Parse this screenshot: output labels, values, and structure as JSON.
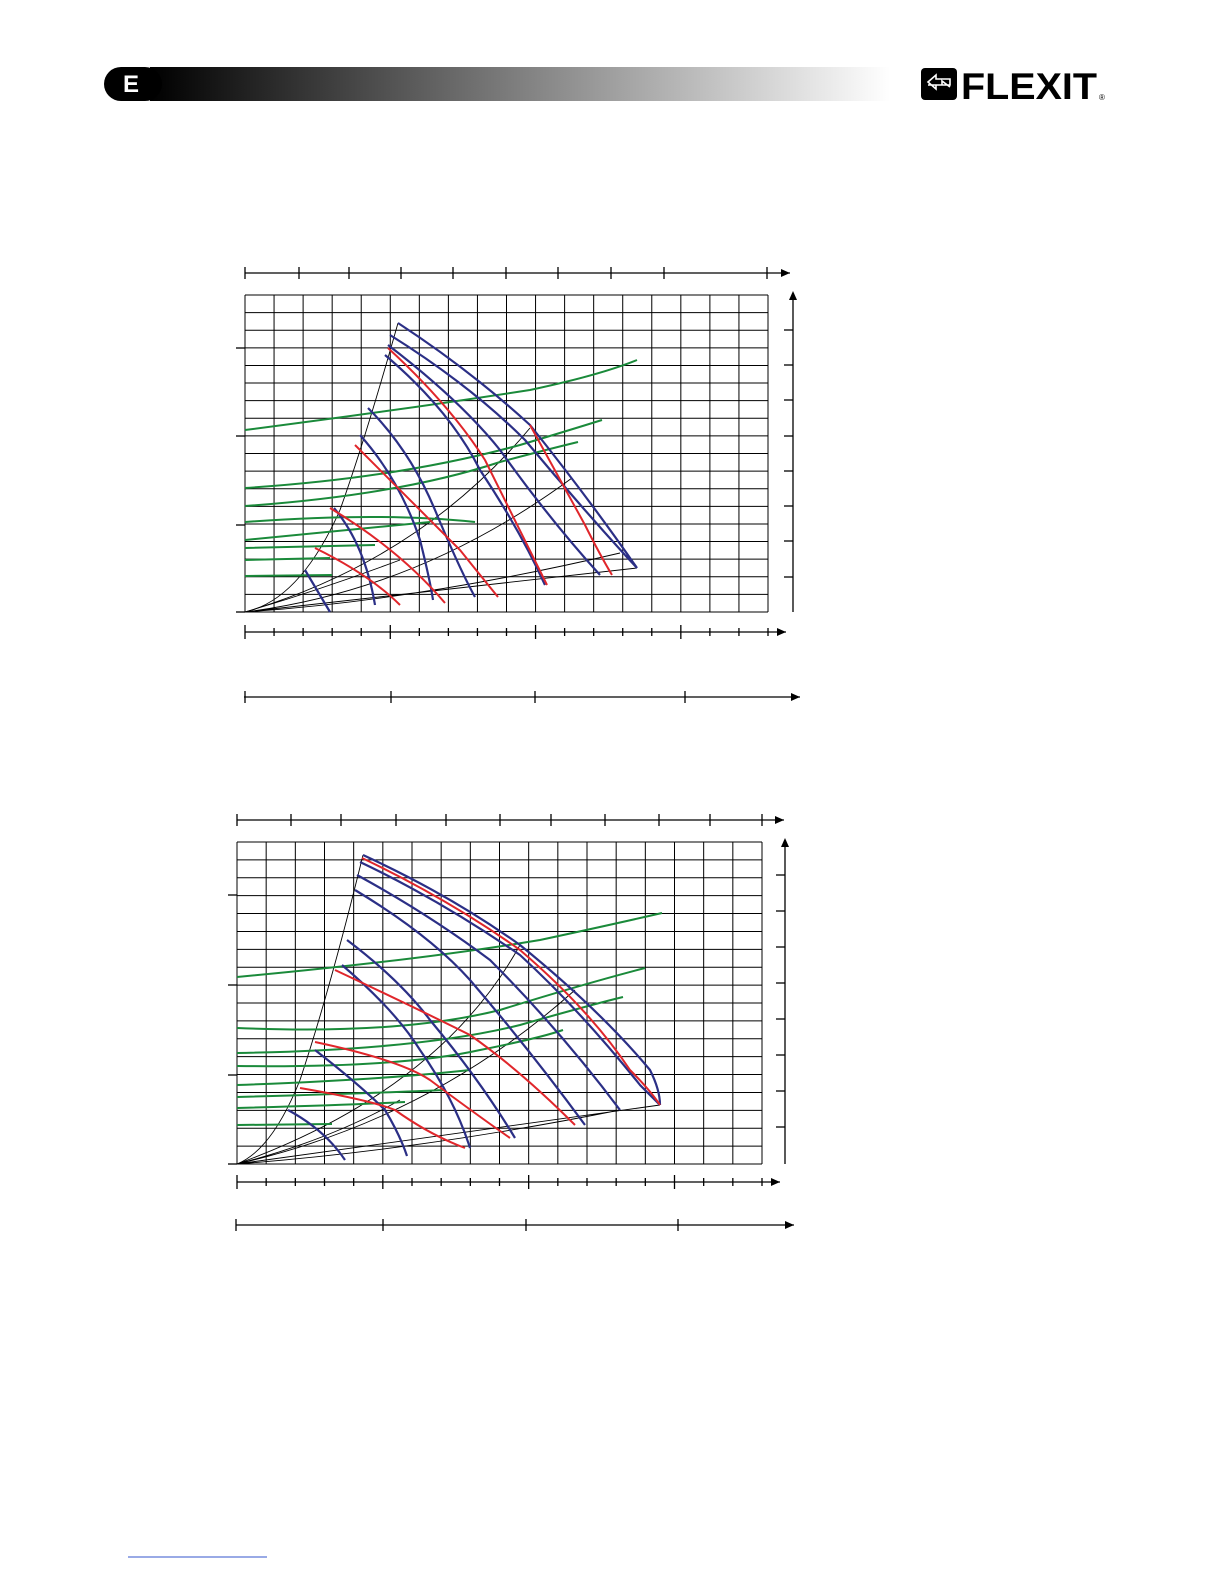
{
  "header": {
    "badge": "E",
    "logo": "FLEXIT",
    "registered": "®"
  }
}
